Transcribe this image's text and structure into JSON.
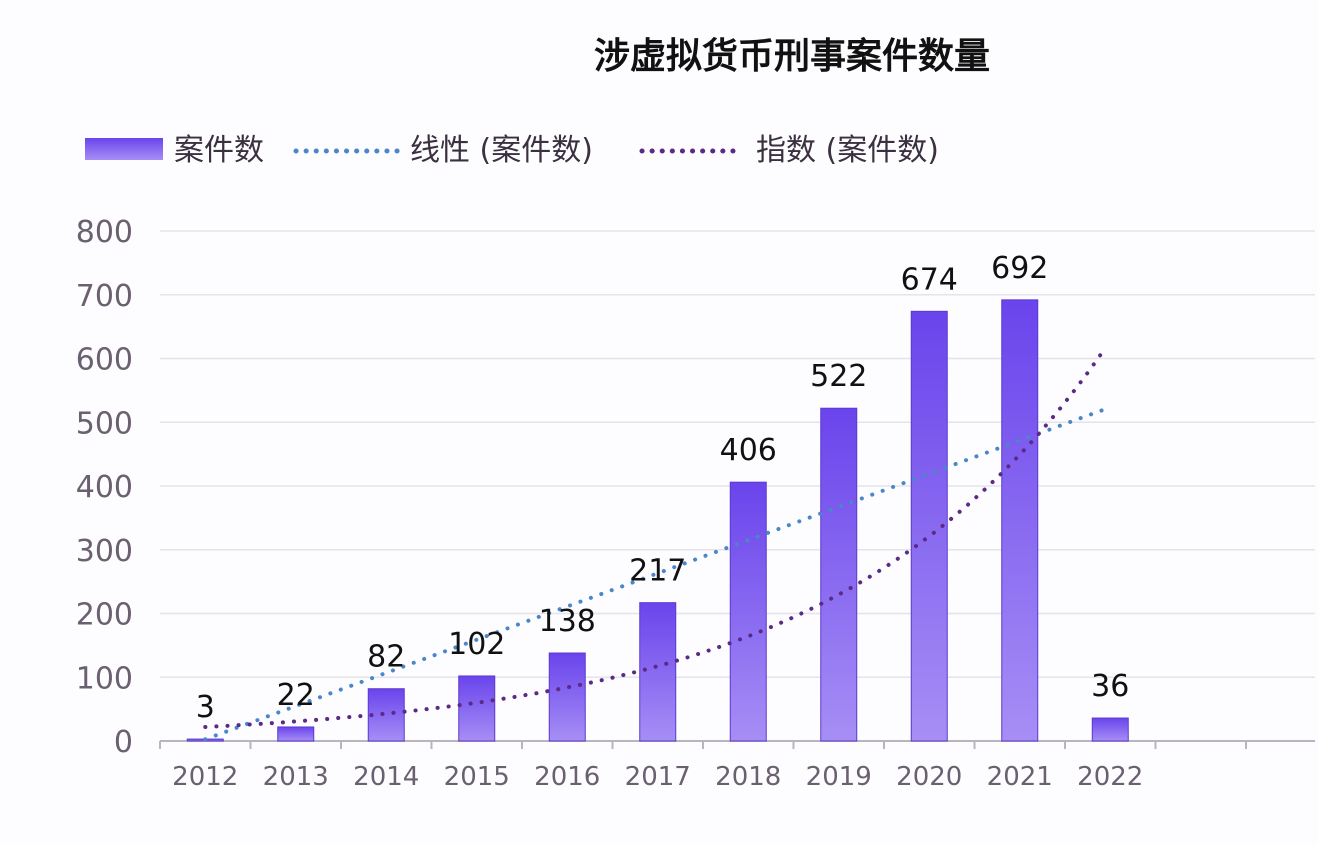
{
  "chart_data": {
    "type": "bar",
    "title": "涉虚拟货币刑事案件数量",
    "xlabel": "",
    "ylabel": "",
    "categories": [
      "2012",
      "2013",
      "2014",
      "2015",
      "2016",
      "2017",
      "2018",
      "2019",
      "2020",
      "2021",
      "2022"
    ],
    "series": [
      {
        "name": "案件数",
        "type": "bar",
        "values": [
          3,
          22,
          82,
          102,
          138,
          217,
          406,
          522,
          674,
          692,
          36
        ],
        "color": "#6c47ee"
      },
      {
        "name": "线性 (案件数)",
        "type": "trendline-linear",
        "style": "dotted",
        "color": "#4a86c8"
      },
      {
        "name": "指数 (案件数)",
        "type": "trendline-exponential",
        "style": "dotted",
        "color": "#5a2a86"
      }
    ],
    "ylim": [
      0,
      800
    ],
    "yticks": [
      "0",
      "100",
      "200",
      "300",
      "400",
      "500",
      "600",
      "700",
      "800"
    ],
    "grid": true,
    "legend_position": "top-left"
  }
}
